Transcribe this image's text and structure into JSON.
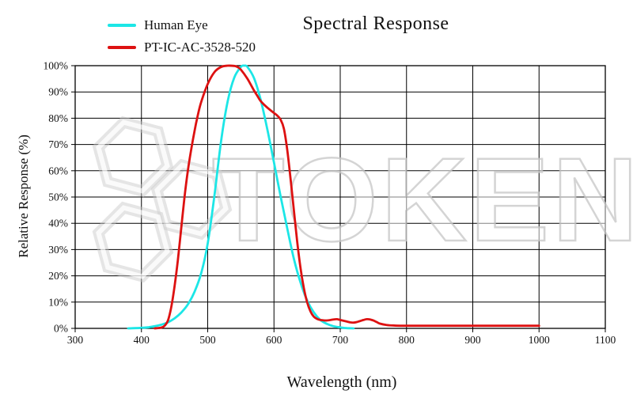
{
  "watermark": {
    "text": "TOKEN",
    "color": "#c6c6c6"
  },
  "chart_data": {
    "type": "line",
    "title": "Spectral Response",
    "xlabel": "Wavelength (nm)",
    "ylabel": "Relative Response (%)",
    "xlim": [
      300,
      1100
    ],
    "ylim": [
      0,
      100
    ],
    "grid": true,
    "legend_position": "top-left",
    "x_tick_values": [
      300,
      400,
      500,
      600,
      700,
      800,
      900,
      1000,
      1100
    ],
    "x_tick_labels": [
      "300",
      "400",
      "500",
      "600",
      "700",
      "800",
      "900",
      "1000",
      "1100"
    ],
    "y_tick_values": [
      0,
      10,
      20,
      30,
      40,
      50,
      60,
      70,
      80,
      90,
      100
    ],
    "y_tick_labels": [
      "0%",
      "10%",
      "20%",
      "30%",
      "40%",
      "50%",
      "60%",
      "70%",
      "80%",
      "90%",
      "100%"
    ],
    "series": [
      {
        "name": "Human Eye",
        "color": "#1ce6e6",
        "points": [
          [
            380,
            0
          ],
          [
            390,
            0.1
          ],
          [
            400,
            0.2
          ],
          [
            410,
            0.4
          ],
          [
            420,
            0.8
          ],
          [
            430,
            1.4
          ],
          [
            440,
            2.3
          ],
          [
            450,
            3.8
          ],
          [
            460,
            6.0
          ],
          [
            470,
            9.1
          ],
          [
            480,
            13.9
          ],
          [
            490,
            20.8
          ],
          [
            500,
            32.3
          ],
          [
            510,
            50.3
          ],
          [
            520,
            71.0
          ],
          [
            530,
            86.2
          ],
          [
            540,
            95.4
          ],
          [
            550,
            99.5
          ],
          [
            555,
            100
          ],
          [
            560,
            99.5
          ],
          [
            570,
            95.2
          ],
          [
            580,
            87.0
          ],
          [
            590,
            75.7
          ],
          [
            600,
            63.1
          ],
          [
            610,
            50.3
          ],
          [
            620,
            38.1
          ],
          [
            630,
            26.5
          ],
          [
            640,
            17.5
          ],
          [
            650,
            10.7
          ],
          [
            660,
            6.1
          ],
          [
            670,
            3.2
          ],
          [
            680,
            1.7
          ],
          [
            690,
            0.8
          ],
          [
            700,
            0.4
          ],
          [
            710,
            0.1
          ],
          [
            720,
            0
          ]
        ]
      },
      {
        "name": "PT-IC-AC-3528-520",
        "color": "#dd1111",
        "points": [
          [
            420,
            0
          ],
          [
            430,
            0.3
          ],
          [
            435,
            1
          ],
          [
            440,
            3
          ],
          [
            445,
            8
          ],
          [
            450,
            16
          ],
          [
            455,
            26
          ],
          [
            460,
            38
          ],
          [
            465,
            50
          ],
          [
            470,
            60
          ],
          [
            475,
            68
          ],
          [
            480,
            75
          ],
          [
            485,
            81
          ],
          [
            490,
            86
          ],
          [
            500,
            93
          ],
          [
            510,
            97.5
          ],
          [
            520,
            99.5
          ],
          [
            530,
            100
          ],
          [
            540,
            99.9
          ],
          [
            545,
            99.5
          ],
          [
            550,
            98.5
          ],
          [
            560,
            95
          ],
          [
            570,
            90.5
          ],
          [
            575,
            88.5
          ],
          [
            580,
            86.5
          ],
          [
            590,
            84
          ],
          [
            600,
            82
          ],
          [
            605,
            81
          ],
          [
            610,
            79.5
          ],
          [
            615,
            76
          ],
          [
            620,
            68
          ],
          [
            625,
            57
          ],
          [
            630,
            45
          ],
          [
            635,
            33
          ],
          [
            640,
            23
          ],
          [
            645,
            15.5
          ],
          [
            650,
            10
          ],
          [
            655,
            6.5
          ],
          [
            660,
            4.5
          ],
          [
            665,
            3.6
          ],
          [
            670,
            3.2
          ],
          [
            680,
            3.0
          ],
          [
            690,
            3.4
          ],
          [
            695,
            3.5
          ],
          [
            700,
            3.2
          ],
          [
            710,
            2.6
          ],
          [
            715,
            2.3
          ],
          [
            720,
            2.2
          ],
          [
            725,
            2.4
          ],
          [
            735,
            3.2
          ],
          [
            740,
            3.5
          ],
          [
            745,
            3.4
          ],
          [
            750,
            3.0
          ],
          [
            755,
            2.4
          ],
          [
            760,
            1.8
          ],
          [
            770,
            1.3
          ],
          [
            780,
            1.1
          ],
          [
            790,
            1.0
          ],
          [
            800,
            1.0
          ],
          [
            850,
            1.0
          ],
          [
            900,
            1.0
          ],
          [
            950,
            1.0
          ],
          [
            1000,
            1.0
          ]
        ]
      }
    ]
  }
}
